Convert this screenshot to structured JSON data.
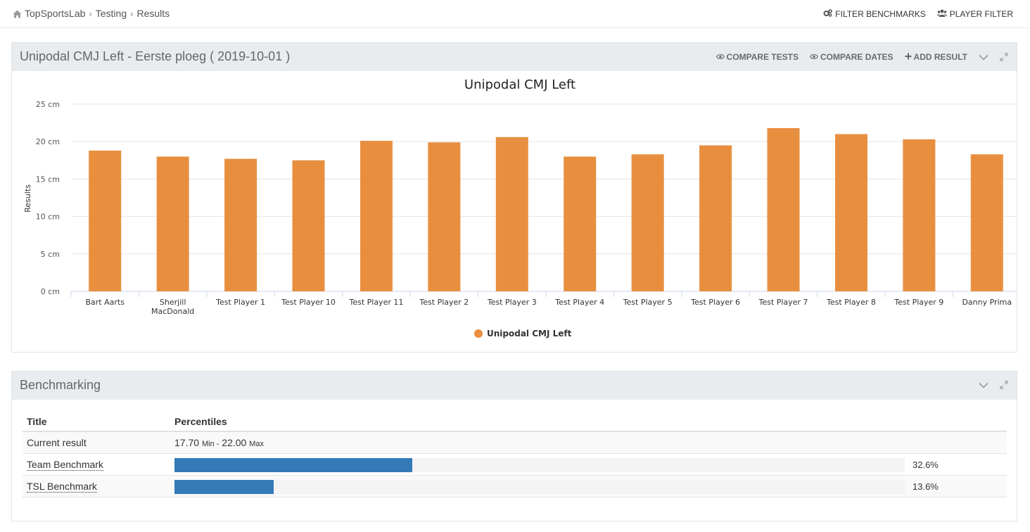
{
  "breadcrumb": {
    "home": "TopSportsLab",
    "level2": "Testing",
    "level3": "Results",
    "separator": "›"
  },
  "toolbar": {
    "filter_benchmarks": "FILTER BENCHMARKS",
    "player_filter": "PLAYER FILTER"
  },
  "results_panel": {
    "title": "Unipodal CMJ Left - Eerste ploeg ( 2019-10-01 )",
    "compare_tests": "COMPARE TESTS",
    "compare_dates": "COMPARE DATES",
    "add_result": "ADD RESULT"
  },
  "chart_data": {
    "type": "bar",
    "title": "Unipodal CMJ Left",
    "ylabel": "Results",
    "xlabel": "",
    "ylim": [
      0,
      25
    ],
    "yticks": [
      "0 cm",
      "5 cm",
      "10 cm",
      "15 cm",
      "20 cm",
      "25 cm"
    ],
    "categories": [
      "Bart Aarts",
      "Sherjill MacDonald",
      "Test Player 1",
      "Test Player 10",
      "Test Player 11",
      "Test Player 2",
      "Test Player 3",
      "Test Player 4",
      "Test Player 5",
      "Test Player 6",
      "Test Player 7",
      "Test Player 8",
      "Test Player 9",
      "Danny Prima"
    ],
    "series": [
      {
        "name": "Unipodal CMJ Left",
        "values": [
          18.8,
          18.0,
          17.7,
          17.5,
          20.1,
          19.9,
          20.6,
          18.0,
          18.3,
          19.5,
          21.8,
          21.0,
          20.3,
          18.3
        ]
      }
    ],
    "bar_color": "#e88f3f",
    "legend": "bottom-center",
    "grid": true
  },
  "benchmark_panel": {
    "title": "Benchmarking",
    "headers": {
      "title": "Title",
      "percentiles": "Percentiles"
    },
    "current": {
      "label": "Current result",
      "min": "17.70",
      "min_label": "Min -",
      "max": "22.00",
      "max_label": "Max"
    },
    "rows": [
      {
        "label": "Team Benchmark",
        "percent": 32.6,
        "percent_text": "32.6%"
      },
      {
        "label": "TSL Benchmark",
        "percent": 13.6,
        "percent_text": "13.6%"
      }
    ],
    "bar_color": "#337ab7"
  }
}
